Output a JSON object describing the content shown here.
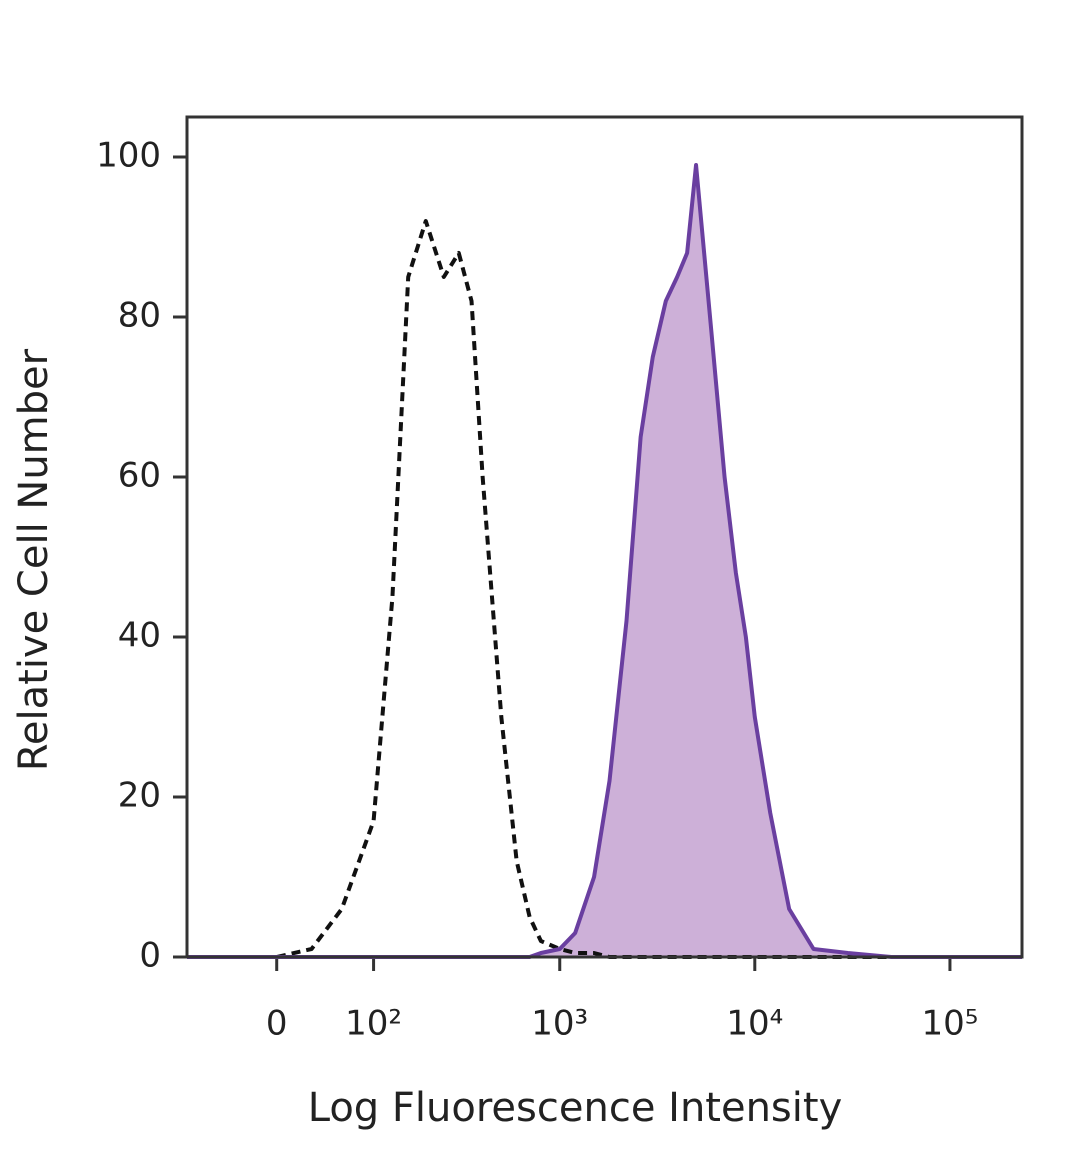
{
  "chart_data": {
    "type": "histogram-overlay",
    "xlabel": "Log Fluorescence Intensity",
    "ylabel": "Relative Cell Number",
    "xscale": "biexponential",
    "x": [
      -90,
      -50,
      0,
      30,
      60,
      100,
      130,
      160,
      200,
      250,
      300,
      350,
      400,
      500,
      600,
      700,
      800,
      1000,
      1200,
      1500,
      1800,
      2200,
      2600,
      3000,
      3500,
      4000,
      4500,
      5000,
      6000,
      7000,
      8000,
      9000,
      10000,
      12000,
      15000,
      20000,
      30000,
      50000,
      100000,
      234000
    ],
    "series": [
      {
        "color": "#111111",
        "style": "dashed",
        "fill": false,
        "values": [
          0,
          0,
          0,
          1,
          6,
          17,
          45,
          85,
          92,
          85,
          88,
          82,
          60,
          30,
          12,
          5,
          2,
          1,
          0.5,
          0.5,
          0,
          0,
          0,
          0,
          0,
          0,
          0,
          0,
          0,
          0,
          0,
          0,
          0,
          0,
          0,
          0,
          0,
          0,
          0,
          0
        ]
      },
      {
        "color": "#6a3fa0",
        "fill_color": "#cdb0d8",
        "style": "solid",
        "fill": true,
        "values": [
          0,
          0,
          0,
          0,
          0,
          0,
          0,
          0,
          0,
          0,
          0,
          0,
          0,
          0,
          0,
          0,
          0.5,
          1,
          3,
          10,
          22,
          42,
          65,
          75,
          82,
          85,
          88,
          99,
          78,
          60,
          48,
          40,
          30,
          18,
          6,
          1,
          0.5,
          0,
          0,
          0
        ]
      }
    ],
    "xlim": [
      -90,
      234000
    ],
    "xticks": [
      0,
      {
        "value": 100,
        "label": "10²"
      },
      {
        "value": 1000,
        "label": "10³"
      },
      {
        "value": 10000,
        "label": "10⁴"
      },
      {
        "value": 100000,
        "label": "10⁵"
      }
    ],
    "ylim": [
      0,
      105
    ],
    "yticks": [
      0,
      20,
      40,
      60,
      80,
      100
    ],
    "grid": false
  }
}
